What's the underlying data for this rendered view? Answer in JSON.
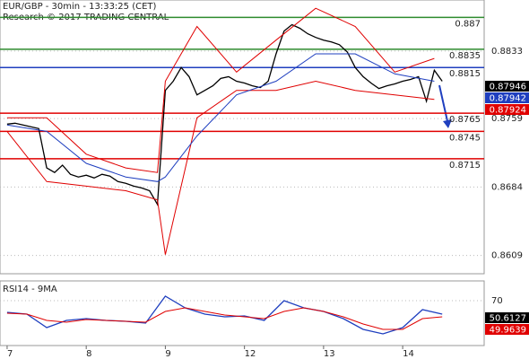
{
  "chart_data": [
    {
      "type": "line",
      "title": "EUR/GBP - 30min - 13:33:25 (CET)",
      "subtitle": "Research © 2017 TRADING CENTRAL",
      "xlim": [
        -0.09,
        6.03
      ],
      "ylim": [
        0.8589,
        0.8889
      ],
      "yticks": [
        0.8833,
        0.8759,
        0.8684,
        0.8609
      ],
      "grid": true,
      "series": [
        {
          "color": "#000000",
          "x": [
            0,
            0.1,
            0.2,
            0.3,
            0.4,
            0.5,
            0.6,
            0.7,
            0.8,
            0.9,
            1,
            1.1,
            1.2,
            1.3,
            1.4,
            1.5,
            1.6,
            1.7,
            1.8,
            1.9,
            2,
            2.1,
            2.2,
            2.3,
            2.4,
            2.5,
            2.6,
            2.7,
            2.8,
            2.9,
            3,
            3.1,
            3.2,
            3.3,
            3.4,
            3.5,
            3.6,
            3.7,
            3.8,
            3.9,
            4,
            4.1,
            4.2,
            4.3,
            4.4,
            4.5,
            4.6,
            4.7,
            4.8,
            4.9,
            5,
            5.1,
            5.2,
            5.3,
            5.4,
            5.5
          ],
          "values": [
            0.8753,
            0.8754,
            0.8752,
            0.875,
            0.8748,
            0.8705,
            0.87,
            0.8708,
            0.8698,
            0.8695,
            0.8697,
            0.8694,
            0.8698,
            0.8696,
            0.869,
            0.8688,
            0.8685,
            0.8683,
            0.868,
            0.8665,
            0.879,
            0.88,
            0.8815,
            0.8805,
            0.8785,
            0.879,
            0.8795,
            0.8803,
            0.8805,
            0.88,
            0.8798,
            0.8795,
            0.8793,
            0.88,
            0.883,
            0.8855,
            0.8862,
            0.8858,
            0.8852,
            0.8848,
            0.8845,
            0.8843,
            0.884,
            0.8832,
            0.8815,
            0.8805,
            0.8798,
            0.8792,
            0.8795,
            0.8797,
            0.88,
            0.8802,
            0.8805,
            0.8778,
            0.8812,
            0.88
          ]
        },
        {
          "color": "#e00000",
          "x": [
            0,
            0.5,
            1,
            1.5,
            1.9,
            2,
            2.4,
            2.9,
            3.4,
            3.9,
            4.4,
            4.9,
            5.4
          ],
          "values": [
            0.876,
            0.876,
            0.872,
            0.8705,
            0.87,
            0.88,
            0.886,
            0.881,
            0.8845,
            0.888,
            0.886,
            0.881,
            0.8825
          ]
        },
        {
          "color": "#e00000",
          "x": [
            0,
            0.5,
            1,
            1.5,
            1.9,
            2,
            2.4,
            2.9,
            3.4,
            3.9,
            4.4,
            4.9,
            5.4
          ],
          "values": [
            0.8745,
            0.869,
            0.8685,
            0.868,
            0.867,
            0.861,
            0.876,
            0.879,
            0.879,
            0.88,
            0.879,
            0.8785,
            0.878
          ]
        },
        {
          "color": "#1f3fbf",
          "x": [
            0,
            0.5,
            1,
            1.5,
            1.9,
            2,
            2.4,
            2.9,
            3.4,
            3.9,
            4.4,
            4.9,
            5.4
          ],
          "values": [
            0.8752,
            0.8745,
            0.871,
            0.8695,
            0.869,
            0.8695,
            0.874,
            0.8785,
            0.88,
            0.883,
            0.883,
            0.8808,
            0.88
          ]
        }
      ],
      "levels": [
        {
          "value": 0.887,
          "color": "#2e8b2e"
        },
        {
          "value": 0.8835,
          "color": "#2e8b2e"
        },
        {
          "value": 0.8815,
          "color": "#1f3fbf"
        },
        {
          "value": 0.8765,
          "color": "#e00000"
        },
        {
          "value": 0.8745,
          "color": "#e00000"
        },
        {
          "value": 0.8715,
          "color": "#e00000"
        }
      ],
      "markers": [
        {
          "value": 0.87946,
          "color": "#000000"
        },
        {
          "value": 0.87942,
          "color": "#1f3fbf"
        },
        {
          "value": 0.87924,
          "color": "#e00000"
        }
      ]
    },
    {
      "type": "line",
      "title": "RSI14 - 9MA",
      "xlim": [
        -0.09,
        6.03
      ],
      "ylim": [
        20,
        92
      ],
      "yticks": [
        70
      ],
      "xticks": [
        {
          "value": 0,
          "label": "7"
        },
        {
          "value": 1,
          "label": "8"
        },
        {
          "value": 2,
          "label": "9"
        },
        {
          "value": 3,
          "label": "12"
        },
        {
          "value": 4,
          "label": "13"
        },
        {
          "value": 5,
          "label": "14"
        }
      ],
      "series": [
        {
          "color": "#1f3fbf",
          "x": [
            0,
            0.25,
            0.5,
            0.75,
            1,
            1.25,
            1.5,
            1.75,
            2,
            2.25,
            2.5,
            2.75,
            3,
            3.25,
            3.5,
            3.75,
            4,
            4.25,
            4.5,
            4.75,
            5,
            5.25,
            5.5
          ],
          "values": [
            57,
            55,
            40,
            48,
            50,
            48,
            47,
            45,
            75,
            62,
            55,
            52,
            53,
            48,
            70,
            62,
            58,
            50,
            38,
            33,
            40,
            60,
            55
          ]
        },
        {
          "color": "#e00000",
          "x": [
            0,
            0.25,
            0.5,
            0.75,
            1,
            1.25,
            1.5,
            1.75,
            2,
            2.25,
            2.5,
            2.75,
            3,
            3.25,
            3.5,
            3.75,
            4,
            4.25,
            4.5,
            4.75,
            5,
            5.25,
            5.5
          ],
          "values": [
            56,
            55,
            48,
            46,
            49,
            48,
            47,
            46,
            58,
            62,
            58,
            54,
            52,
            50,
            58,
            62,
            58,
            52,
            44,
            38,
            38,
            50,
            52
          ]
        }
      ],
      "markers": [
        {
          "value": 50.6127,
          "color": "#000000"
        },
        {
          "value": 49.9639,
          "color": "#e00000"
        }
      ]
    }
  ]
}
